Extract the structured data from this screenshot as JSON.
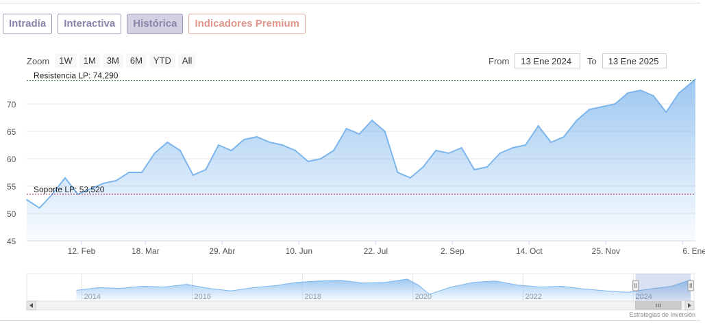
{
  "tabs": [
    {
      "label": "Intradía",
      "active": false
    },
    {
      "label": "Interactiva",
      "active": false
    },
    {
      "label": "Histórica",
      "active": true
    },
    {
      "label": "Indicadores Premium",
      "active": false
    }
  ],
  "zoom": {
    "label": "Zoom",
    "buttons": [
      "1W",
      "1M",
      "3M",
      "6M",
      "YTD",
      "All"
    ]
  },
  "range": {
    "from_label": "From",
    "from_value": "13 Ene 2024",
    "to_label": "To",
    "to_value": "13 Ene 2025"
  },
  "credit": "Estrategias de Inversión",
  "colors": {
    "line": "#7cb5ec",
    "area_top": "#7cb5ec",
    "resistance": "#2e8b3a",
    "support": "#a0203a",
    "tab_border": "#9b93b8",
    "premium": "#e0958a"
  },
  "chart_data": {
    "type": "area",
    "x_tick_labels": [
      "12. Feb",
      "18. Mar",
      "29. Abr",
      "10. Jun",
      "22. Jul",
      "2. Sep",
      "14. Oct",
      "25. Nov",
      "6. Ene"
    ],
    "y_tick_labels": [
      "45",
      "50",
      "55",
      "60",
      "65",
      "70"
    ],
    "ylim": [
      45,
      75
    ],
    "x": [
      "2024-01-13",
      "2024-01-20",
      "2024-01-27",
      "2024-02-03",
      "2024-02-10",
      "2024-02-17",
      "2024-02-24",
      "2024-03-02",
      "2024-03-09",
      "2024-03-16",
      "2024-03-23",
      "2024-03-30",
      "2024-04-06",
      "2024-04-13",
      "2024-04-20",
      "2024-04-27",
      "2024-05-04",
      "2024-05-11",
      "2024-05-18",
      "2024-05-25",
      "2024-06-01",
      "2024-06-08",
      "2024-06-15",
      "2024-06-22",
      "2024-06-29",
      "2024-07-06",
      "2024-07-13",
      "2024-07-20",
      "2024-07-27",
      "2024-08-03",
      "2024-08-10",
      "2024-08-17",
      "2024-08-24",
      "2024-08-31",
      "2024-09-07",
      "2024-09-14",
      "2024-09-21",
      "2024-09-28",
      "2024-10-05",
      "2024-10-12",
      "2024-10-19",
      "2024-10-26",
      "2024-11-02",
      "2024-11-09",
      "2024-11-16",
      "2024-11-23",
      "2024-11-30",
      "2024-12-07",
      "2024-12-14",
      "2024-12-21",
      "2024-12-28",
      "2025-01-04",
      "2025-01-13"
    ],
    "series": [
      {
        "values": [
          52.5,
          51.0,
          53.5,
          56.5,
          53.5,
          54.5,
          55.5,
          56.0,
          57.5,
          57.5,
          61.0,
          63.0,
          61.5,
          57.0,
          58.0,
          62.5,
          61.5,
          63.5,
          64.0,
          63.0,
          62.5,
          61.5,
          59.5,
          60.0,
          61.5,
          65.5,
          64.5,
          67.0,
          65.0,
          57.5,
          56.5,
          58.5,
          61.5,
          61.0,
          62.0,
          58.0,
          58.5,
          61.0,
          62.0,
          62.5,
          66.0,
          63.0,
          64.0,
          67.0,
          69.0,
          69.5,
          70.0,
          72.0,
          72.5,
          71.5,
          68.5,
          72.0,
          74.5
        ]
      }
    ],
    "annotations": [
      {
        "label": "Resistencia LP: 74,290",
        "value": 74.29
      },
      {
        "label": "Soporte LP: 53,520",
        "value": 53.52
      }
    ],
    "navigator_tick_labels": [
      "2014",
      "2016",
      "2018",
      "2020",
      "2022",
      "2024"
    ],
    "navigator_years": [
      2013.9,
      2014.3,
      2014.7,
      2015.1,
      2015.5,
      2015.9,
      2016.3,
      2016.7,
      2017.1,
      2017.5,
      2017.9,
      2018.3,
      2018.7,
      2019.1,
      2019.5,
      2019.9,
      2020.1,
      2020.3,
      2020.7,
      2021.1,
      2021.5,
      2021.9,
      2022.3,
      2022.7,
      2023.1,
      2023.5,
      2023.9,
      2024.3,
      2024.7,
      2025.04
    ],
    "navigator_values": [
      58,
      62,
      61,
      64,
      63,
      67,
      61,
      57,
      62,
      65,
      70,
      72,
      73,
      69,
      70,
      75,
      66,
      52,
      63,
      70,
      72,
      66,
      63,
      64,
      60,
      57,
      55,
      60,
      64,
      74
    ],
    "grid": true,
    "legend": "none"
  }
}
